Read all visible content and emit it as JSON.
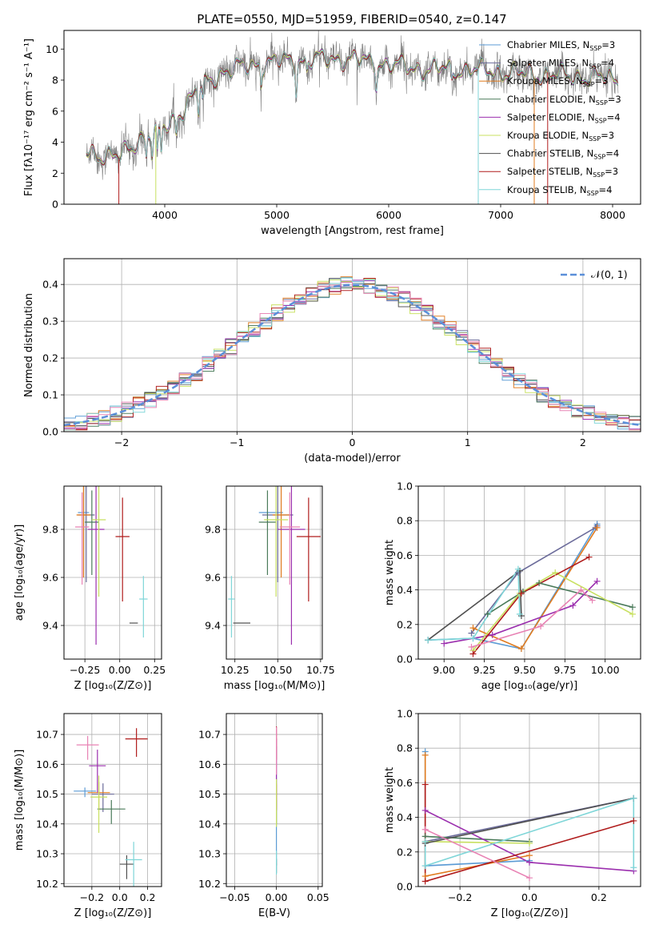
{
  "title": "PLATE=0550, MJD=51959, FIBERID=0540, z=0.147",
  "colors": {
    "chabrier_miles": "#5b9bd5",
    "salpeter_miles": "#6b6b9a",
    "kroupa_miles": "#e07b1f",
    "chabrier_elodie": "#4a7a5a",
    "salpeter_elodie": "#9b2fae",
    "kroupa_elodie": "#c8e060",
    "chabrier_stelib": "#505050",
    "salpeter_stelib": "#b01c1c",
    "kroupa_stelib": "#7fd6d8",
    "pink": "#e882b4",
    "gaussian": "#5b8fd9",
    "grid": "#b0b0b0"
  },
  "chart_data": [
    {
      "id": "spectrum",
      "type": "line",
      "xlabel": "wavelength [Angstrom, rest frame]",
      "ylabel": "Flux [fλ10⁻¹⁷ erg cm⁻² s⁻¹ A⁻¹]",
      "xlim": [
        3100,
        8250
      ],
      "ylim": [
        0,
        11.2
      ],
      "xticks": [
        4000,
        5000,
        6000,
        7000,
        8000
      ],
      "yticks": [
        0,
        2,
        4,
        6,
        8,
        10
      ],
      "grid": false,
      "legend_position": "top-right",
      "legend": [
        {
          "label": "Chabrier MILES, N",
          "sub": "SSP",
          "tail": "=3",
          "color": "chabrier_miles"
        },
        {
          "label": "Salpeter MILES, N",
          "sub": "SSP",
          "tail": "=4",
          "color": "salpeter_miles"
        },
        {
          "label": "Kroupa MILES, N",
          "sub": "SSP",
          "tail": "=3",
          "color": "kroupa_miles"
        },
        {
          "label": "Chabrier ELODIE, N",
          "sub": "SSP",
          "tail": "=3",
          "color": "chabrier_elodie"
        },
        {
          "label": "Salpeter ELODIE, N",
          "sub": "SSP",
          "tail": "=4",
          "color": "salpeter_elodie"
        },
        {
          "label": "Kroupa ELODIE, N",
          "sub": "SSP",
          "tail": "=3",
          "color": "kroupa_elodie"
        },
        {
          "label": "Chabrier STELIB, N",
          "sub": "SSP",
          "tail": "=4",
          "color": "chabrier_stelib"
        },
        {
          "label": "Salpeter STELIB, N",
          "sub": "SSP",
          "tail": "=3",
          "color": "salpeter_stelib"
        },
        {
          "label": "Kroupa STELIB, N",
          "sub": "SSP",
          "tail": "=4",
          "color": "kroupa_stelib"
        }
      ],
      "continuum": {
        "x": [
          3300,
          3600,
          3800,
          3950,
          4100,
          4300,
          4500,
          4800,
          5000,
          5300,
          5600,
          6000,
          6300,
          6600,
          6900,
          7200,
          7500,
          7800,
          8050
        ],
        "y": [
          3.4,
          3.0,
          4.4,
          4.6,
          5.6,
          7.4,
          8.5,
          9.0,
          9.2,
          9.3,
          9.4,
          9.0,
          8.7,
          8.7,
          8.6,
          8.4,
          8.3,
          8.2,
          8.1
        ]
      },
      "observed_range": [
        3300,
        8050
      ]
    },
    {
      "id": "residuals",
      "type": "line",
      "xlabel": "(data-model)/error",
      "ylabel": "Normed distribution",
      "xlim": [
        -2.5,
        2.5
      ],
      "ylim": [
        0,
        0.47
      ],
      "xticks": [
        -2,
        -1,
        0,
        1,
        2
      ],
      "yticks": [
        0.0,
        0.1,
        0.2,
        0.3,
        0.4
      ],
      "grid": true,
      "legend_position": "top-right",
      "legend_label": "𝒩(0, 1)",
      "bin_width": 0.1
    },
    {
      "id": "age_vs_Z",
      "type": "scatter",
      "xlabel": "Z [log₁₀(Z/Z⊙)]",
      "ylabel": "age  [log₁₀(age/yr)]",
      "xlim": [
        -0.4,
        0.3
      ],
      "ylim": [
        9.26,
        9.98
      ],
      "xticks": [
        -0.25,
        0.0,
        0.25
      ],
      "xtick_labels": [
        "−0.25",
        "0.00",
        "0.25"
      ],
      "yticks": [
        9.4,
        9.6,
        9.8
      ],
      "grid": true,
      "points": [
        {
          "color": "chabrier_miles",
          "x": -0.26,
          "xerr": 0.0,
          "y": 9.87,
          "yerr": 0.0
        },
        {
          "color": "salpeter_miles",
          "x": -0.24,
          "xerr": 0.05,
          "y": 9.86,
          "yerr": 0.05
        },
        {
          "color": "kroupa_miles",
          "x": -0.26,
          "xerr": 0.0,
          "y": 9.86,
          "yerr": 0.0
        },
        {
          "color": "chabrier_elodie",
          "x": -0.2,
          "xerr": 0.1,
          "y": 9.83,
          "yerr": 0.05
        },
        {
          "color": "salpeter_elodie",
          "x": -0.17,
          "xerr": 0.0,
          "y": 9.8,
          "yerr": 0.0
        },
        {
          "color": "kroupa_elodie",
          "x": -0.15,
          "xerr": 0.0,
          "y": 9.84,
          "yerr": 0.0
        },
        {
          "color": "chabrier_stelib",
          "x": 0.1,
          "xerr": 0.0,
          "y": 9.41,
          "yerr": 0.0
        },
        {
          "color": "salpeter_stelib",
          "x": 0.02,
          "xerr": 0.0,
          "y": 9.77,
          "yerr": 0.0
        },
        {
          "color": "kroupa_stelib",
          "x": 0.17,
          "xerr": 0.0,
          "y": 9.51,
          "yerr": 0.0
        },
        {
          "color": "pink",
          "x": -0.27,
          "xerr": 0.0,
          "y": 9.81,
          "yerr": 0.0
        }
      ]
    },
    {
      "id": "age_vs_mass",
      "type": "scatter",
      "xlabel": "mass [log₁₀(M/M⊙)]",
      "ylabel": "",
      "xlim": [
        10.2,
        10.76
      ],
      "ylim": [
        9.26,
        9.98
      ],
      "xticks": [
        10.25,
        10.5,
        10.75
      ],
      "xtick_labels": [
        "10.25",
        "10.50",
        "10.75"
      ],
      "yticks": [
        9.4,
        9.6,
        9.8
      ],
      "grid": true,
      "points": []
    },
    {
      "id": "weight_vs_age",
      "type": "line",
      "xlabel": "age  [log₁₀(age/yr)]",
      "ylabel": "mass weight",
      "xlim": [
        8.84,
        10.22
      ],
      "ylim": [
        0,
        1
      ],
      "xticks": [
        9.0,
        9.25,
        9.5,
        9.75,
        10.0
      ],
      "xtick_labels": [
        "9.00",
        "9.25",
        "9.50",
        "9.75",
        "10.00"
      ],
      "yticks": [
        0.0,
        0.2,
        0.4,
        0.6,
        0.8,
        1.0
      ],
      "grid": true,
      "series": [
        {
          "color": "chabrier_miles",
          "x": [
            8.9,
            9.18,
            9.48,
            9.95
          ],
          "y": [
            0.11,
            0.12,
            0.06,
            0.78
          ]
        },
        {
          "color": "salpeter_miles",
          "x": [
            9.17,
            9.46,
            9.94,
            9.95
          ],
          "y": [
            0.15,
            0.5,
            0.76,
            0.77
          ]
        },
        {
          "color": "kroupa_miles",
          "x": [
            9.18,
            9.48,
            9.95
          ],
          "y": [
            0.18,
            0.06,
            0.76
          ]
        },
        {
          "color": "chabrier_elodie",
          "x": [
            9.27,
            9.49,
            9.59,
            10.17
          ],
          "y": [
            0.26,
            0.39,
            0.44,
            0.3
          ]
        },
        {
          "color": "salpeter_elodie",
          "x": [
            9.0,
            9.3,
            9.8,
            9.95
          ],
          "y": [
            0.09,
            0.14,
            0.31,
            0.45
          ]
        },
        {
          "color": "kroupa_elodie",
          "x": [
            9.18,
            9.47,
            9.69,
            10.17
          ],
          "y": [
            0.05,
            0.38,
            0.5,
            0.26
          ]
        },
        {
          "color": "chabrier_stelib",
          "x": [
            8.9,
            9.47,
            9.48
          ],
          "y": [
            0.11,
            0.51,
            0.25
          ]
        },
        {
          "color": "salpeter_stelib",
          "x": [
            9.18,
            9.48,
            9.9
          ],
          "y": [
            0.03,
            0.38,
            0.59
          ]
        },
        {
          "color": "kroupa_stelib",
          "x": [
            8.9,
            9.18,
            9.46,
            9.47
          ],
          "y": [
            0.11,
            0.12,
            0.52,
            0.26
          ]
        },
        {
          "color": "pink",
          "x": [
            9.17,
            9.6,
            9.85,
            9.92
          ],
          "y": [
            0.07,
            0.19,
            0.4,
            0.34
          ]
        }
      ]
    },
    {
      "id": "mass_vs_Z",
      "type": "scatter",
      "xlabel": "Z [log₁₀(Z/Z⊙)]",
      "ylabel": "mass [log₁₀(M/M⊙)]",
      "xlim": [
        -0.4,
        0.3
      ],
      "ylim": [
        10.19,
        10.77
      ],
      "xticks": [
        -0.2,
        0.0,
        0.2
      ],
      "xtick_labels": [
        "−0.2",
        "0.0",
        "0.2"
      ],
      "yticks": [
        10.2,
        10.3,
        10.4,
        10.5,
        10.6,
        10.7
      ],
      "grid": true,
      "points": [
        {
          "color": "chabrier_miles",
          "x": -0.25,
          "xerr": 0.0,
          "y": 10.51,
          "yerr": 0.0
        },
        {
          "color": "salpeter_miles",
          "x": -0.12,
          "xerr": 0.0,
          "y": 10.5,
          "yerr": 0.0
        },
        {
          "color": "kroupa_miles",
          "x": -0.15,
          "xerr": 0.0,
          "y": 10.505,
          "yerr": 0.0
        },
        {
          "color": "chabrier_elodie",
          "x": -0.06,
          "xerr": 0.0,
          "y": 10.45,
          "yerr": 0.0
        },
        {
          "color": "salpeter_elodie",
          "x": -0.16,
          "xerr": 0.0,
          "y": 10.595,
          "yerr": 0.0
        },
        {
          "color": "kroupa_elodie",
          "x": -0.15,
          "xerr": 0.0,
          "y": 10.49,
          "yerr": 0.0
        },
        {
          "color": "chabrier_stelib",
          "x": 0.05,
          "xerr": 0.0,
          "y": 10.265,
          "yerr": 0.0
        },
        {
          "color": "salpeter_stelib",
          "x": 0.12,
          "xerr": 0.0,
          "y": 10.685,
          "yerr": 0.0
        },
        {
          "color": "kroupa_stelib",
          "x": 0.1,
          "xerr": 0.0,
          "y": 10.28,
          "yerr": 0.0
        },
        {
          "color": "pink",
          "x": -0.23,
          "xerr": 0.0,
          "y": 10.665,
          "yerr": 0.0
        }
      ]
    },
    {
      "id": "mass_vs_ebv",
      "type": "scatter",
      "xlabel": "E(B-V)",
      "ylabel": "",
      "xlim": [
        -0.06,
        0.055
      ],
      "ylim": [
        10.19,
        10.77
      ],
      "xticks": [
        -0.05,
        0.0,
        0.05
      ],
      "xtick_labels": [
        "−0.05",
        "0.00",
        "0.05"
      ],
      "yticks": [
        10.2,
        10.3,
        10.4,
        10.5,
        10.6,
        10.7
      ],
      "grid": true,
      "points": []
    },
    {
      "id": "weight_vs_Z",
      "type": "line",
      "xlabel": "Z [log₁₀(Z/Z⊙)]",
      "ylabel": "mass weight",
      "xlim": [
        -0.32,
        0.32
      ],
      "ylim": [
        0,
        1
      ],
      "xticks": [
        -0.2,
        0.0,
        0.2
      ],
      "xtick_labels": [
        "−0.2",
        "0.0",
        "0.2"
      ],
      "yticks": [
        0.0,
        0.2,
        0.4,
        0.6,
        0.8,
        1.0
      ],
      "grid": true,
      "series": [
        {
          "color": "chabrier_miles",
          "x": [
            -0.3,
            -0.3,
            0.0
          ],
          "y": [
            0.78,
            0.12,
            0.15
          ]
        },
        {
          "color": "salpeter_miles",
          "x": [
            -0.3,
            0.3
          ],
          "y": [
            0.26,
            0.51
          ]
        },
        {
          "color": "kroupa_miles",
          "x": [
            -0.3,
            -0.3,
            0.0
          ],
          "y": [
            0.76,
            0.06,
            0.18
          ]
        },
        {
          "color": "chabrier_elodie",
          "x": [
            -0.3,
            0.0
          ],
          "y": [
            0.29,
            0.26
          ]
        },
        {
          "color": "salpeter_elodie",
          "x": [
            -0.3,
            0.0,
            0.3
          ],
          "y": [
            0.44,
            0.14,
            0.09
          ]
        },
        {
          "color": "kroupa_elodie",
          "x": [
            -0.3,
            0.0
          ],
          "y": [
            0.26,
            0.25
          ]
        },
        {
          "color": "chabrier_stelib",
          "x": [
            -0.3,
            0.3
          ],
          "y": [
            0.25,
            0.51
          ]
        },
        {
          "color": "salpeter_stelib",
          "x": [
            -0.3,
            -0.3,
            0.3
          ],
          "y": [
            0.59,
            0.03,
            0.38
          ]
        },
        {
          "color": "kroupa_stelib",
          "x": [
            -0.3,
            -0.3,
            0.3,
            0.3
          ],
          "y": [
            0.26,
            0.12,
            0.51,
            0.11
          ]
        },
        {
          "color": "pink",
          "x": [
            -0.3,
            0.0
          ],
          "y": [
            0.33,
            0.05
          ]
        }
      ]
    }
  ]
}
